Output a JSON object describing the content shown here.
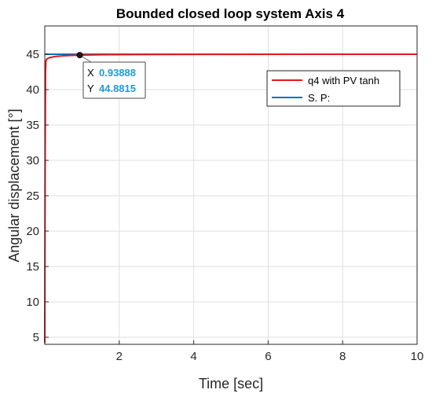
{
  "chart_data": {
    "type": "line",
    "title": "Bounded closed loop system Axis 4",
    "xlabel": "Time [sec]",
    "ylabel": "Angular displacement [°]",
    "xlim": [
      0,
      10
    ],
    "ylim": [
      4,
      49
    ],
    "xticks": [
      2,
      4,
      6,
      8,
      10
    ],
    "yticks": [
      5,
      10,
      15,
      20,
      25,
      30,
      35,
      40,
      45
    ],
    "grid": true,
    "legend_position": "top-right",
    "series": [
      {
        "name": "q4 with PV tanh",
        "color": "#e8161b",
        "x": [
          0,
          0.01,
          0.02,
          0.03,
          0.05,
          0.08,
          0.12,
          0.2,
          0.3,
          0.5,
          0.7,
          0.93888,
          1.5,
          3,
          5,
          10
        ],
        "y": [
          4.2,
          30,
          42.5,
          44.0,
          44.3,
          44.4,
          44.5,
          44.6,
          44.7,
          44.78,
          44.84,
          44.8815,
          44.93,
          44.97,
          44.99,
          45.0
        ]
      },
      {
        "name": "S. P:",
        "color": "#0072bd",
        "x": [
          0,
          10
        ],
        "y": [
          45,
          45
        ]
      }
    ],
    "datatip": {
      "x": 0.93888,
      "y": 44.8815,
      "x_label": "X",
      "y_label": "Y",
      "x_text": "0.93888",
      "y_text": "44.8815"
    }
  }
}
